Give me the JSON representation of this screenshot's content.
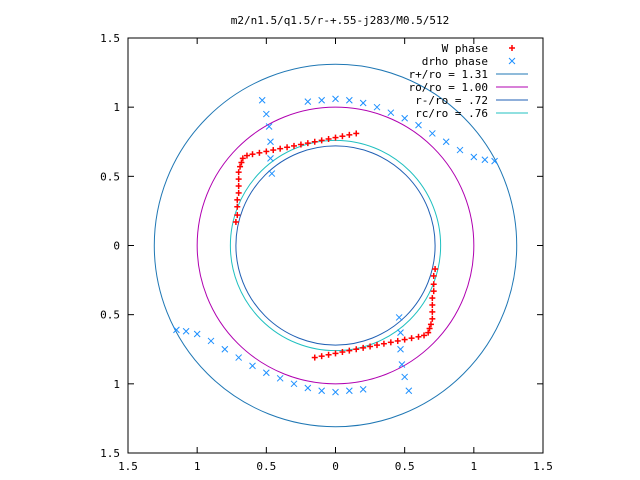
{
  "chart_data": {
    "type": "scatter",
    "title": "m2/n1.5/q1.5/r-+.55-j283/M0.5/512",
    "xlim": [
      -1.5,
      1.5
    ],
    "ylim": [
      -1.5,
      1.5
    ],
    "x_ticks": [
      -1.5,
      -1,
      -0.5,
      0,
      0.5,
      1,
      1.5
    ],
    "y_ticks": [
      -1.5,
      -1,
      -0.5,
      0,
      0.5,
      1,
      1.5
    ],
    "x_tick_labels": [
      "1.5",
      "1",
      "0.5",
      "0",
      "0.5",
      "1",
      "1.5"
    ],
    "y_tick_labels": [
      "1.5",
      "1",
      "0.5",
      "0",
      "0.5",
      "1",
      "1.5"
    ],
    "grid": false,
    "legend_position": "top-right",
    "series": [
      {
        "name": "W phase",
        "kind": "points",
        "marker": "plus",
        "color": "#ff0000",
        "points": [
          [
            0.72,
            -0.17
          ],
          [
            0.71,
            -0.22
          ],
          [
            0.71,
            -0.28
          ],
          [
            0.71,
            -0.33
          ],
          [
            0.7,
            -0.38
          ],
          [
            0.7,
            -0.43
          ],
          [
            0.7,
            -0.48
          ],
          [
            0.7,
            -0.53
          ],
          [
            0.69,
            -0.57
          ],
          [
            0.68,
            -0.6
          ],
          [
            0.67,
            -0.63
          ],
          [
            0.64,
            -0.65
          ],
          [
            0.6,
            -0.66
          ],
          [
            0.55,
            -0.67
          ],
          [
            0.5,
            -0.68
          ],
          [
            0.45,
            -0.69
          ],
          [
            0.4,
            -0.7
          ],
          [
            0.35,
            -0.71
          ],
          [
            0.3,
            -0.72
          ],
          [
            0.25,
            -0.73
          ],
          [
            0.2,
            -0.74
          ],
          [
            0.15,
            -0.75
          ],
          [
            0.1,
            -0.76
          ],
          [
            0.05,
            -0.77
          ],
          [
            0.0,
            -0.78
          ],
          [
            -0.05,
            -0.79
          ],
          [
            -0.1,
            -0.8
          ],
          [
            -0.15,
            -0.81
          ],
          [
            -0.72,
            0.17
          ],
          [
            -0.71,
            0.22
          ],
          [
            -0.71,
            0.28
          ],
          [
            -0.71,
            0.33
          ],
          [
            -0.7,
            0.38
          ],
          [
            -0.7,
            0.43
          ],
          [
            -0.7,
            0.48
          ],
          [
            -0.7,
            0.53
          ],
          [
            -0.69,
            0.57
          ],
          [
            -0.68,
            0.6
          ],
          [
            -0.67,
            0.63
          ],
          [
            -0.64,
            0.65
          ],
          [
            -0.6,
            0.66
          ],
          [
            -0.55,
            0.67
          ],
          [
            -0.5,
            0.68
          ],
          [
            -0.45,
            0.69
          ],
          [
            -0.4,
            0.7
          ],
          [
            -0.35,
            0.71
          ],
          [
            -0.3,
            0.72
          ],
          [
            -0.25,
            0.73
          ],
          [
            -0.2,
            0.74
          ],
          [
            -0.15,
            0.75
          ],
          [
            -0.1,
            0.76
          ],
          [
            -0.05,
            0.77
          ],
          [
            0.0,
            0.78
          ],
          [
            0.05,
            0.79
          ],
          [
            0.1,
            0.8
          ],
          [
            0.15,
            0.81
          ]
        ]
      },
      {
        "name": "drho phase",
        "kind": "points",
        "marker": "cross",
        "color": "#1e90ff",
        "points": [
          [
            0.53,
            -1.05
          ],
          [
            0.5,
            -0.95
          ],
          [
            0.48,
            -0.86
          ],
          [
            0.47,
            -0.75
          ],
          [
            0.47,
            -0.63
          ],
          [
            0.46,
            -0.52
          ],
          [
            -0.53,
            1.05
          ],
          [
            -0.5,
            0.95
          ],
          [
            -0.48,
            0.86
          ],
          [
            -0.47,
            0.75
          ],
          [
            -0.47,
            0.63
          ],
          [
            -0.46,
            0.52
          ],
          [
            0.2,
            -1.04
          ],
          [
            0.1,
            -1.05
          ],
          [
            0.0,
            -1.06
          ],
          [
            -0.1,
            -1.05
          ],
          [
            -0.2,
            -1.03
          ],
          [
            -0.3,
            -1.0
          ],
          [
            -0.4,
            -0.96
          ],
          [
            -0.5,
            -0.92
          ],
          [
            -0.6,
            -0.87
          ],
          [
            -0.7,
            -0.81
          ],
          [
            -0.8,
            -0.75
          ],
          [
            -0.9,
            -0.69
          ],
          [
            -1.0,
            -0.64
          ],
          [
            -1.08,
            -0.62
          ],
          [
            -1.15,
            -0.61
          ],
          [
            -0.2,
            1.04
          ],
          [
            -0.1,
            1.05
          ],
          [
            0.0,
            1.06
          ],
          [
            0.1,
            1.05
          ],
          [
            0.2,
            1.03
          ],
          [
            0.3,
            1.0
          ],
          [
            0.4,
            0.96
          ],
          [
            0.5,
            0.92
          ],
          [
            0.6,
            0.87
          ],
          [
            0.7,
            0.81
          ],
          [
            0.8,
            0.75
          ],
          [
            0.9,
            0.69
          ],
          [
            1.0,
            0.64
          ],
          [
            1.08,
            0.62
          ],
          [
            1.15,
            0.61
          ]
        ]
      },
      {
        "name": "r+/ro = 1.31",
        "kind": "circle",
        "radius": 1.31,
        "color": "#1f77b4"
      },
      {
        "name": "ro/ro = 1.00",
        "kind": "circle",
        "radius": 1.0,
        "color": "#b000b0"
      },
      {
        "name": "r-/ro = .72",
        "kind": "circle",
        "radius": 0.72,
        "color": "#1f5fb4"
      },
      {
        "name": "rc/ro = .76",
        "kind": "circle",
        "radius": 0.76,
        "color": "#20c0c0"
      }
    ]
  }
}
